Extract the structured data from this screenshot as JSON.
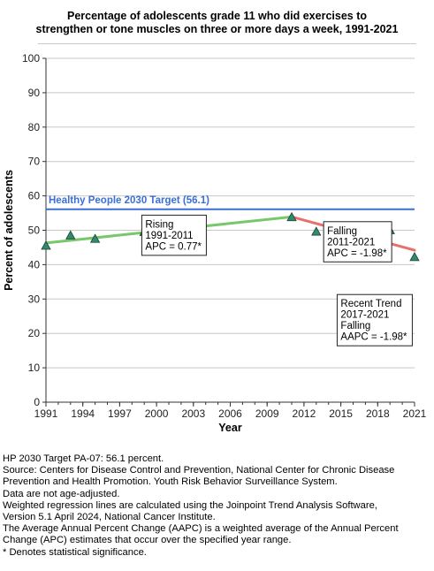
{
  "chart_data": {
    "type": "line",
    "title": [
      "Percentage of adolescents grade 11 who did exercises to",
      "strengthen or tone muscles on three or more days a week, 1991-2021"
    ],
    "xlabel": "Year",
    "ylabel": "Percent of adolescents",
    "xlim": [
      1991,
      2021
    ],
    "ylim": [
      0,
      100
    ],
    "x_ticks": [
      1991,
      1994,
      1997,
      2000,
      2003,
      2006,
      2009,
      2012,
      2015,
      2018,
      2021
    ],
    "y_ticks": [
      0,
      10,
      20,
      30,
      40,
      50,
      60,
      70,
      80,
      90,
      100
    ],
    "grid": "horizontal",
    "observed": {
      "marker": "triangle",
      "color": "#2e8b6e",
      "x": [
        1991,
        1993,
        1995,
        1999,
        2001,
        2003,
        2011,
        2013,
        2015,
        2017,
        2019,
        2021
      ],
      "y": [
        45.5,
        48.5,
        47.5,
        49.5,
        51.0,
        51.3,
        53.8,
        49.6,
        50.9,
        48.3,
        50.0,
        42.2
      ]
    },
    "target": {
      "label": "Healthy People 2030 Target (56.1)",
      "value": 56.1,
      "color": "#3b6fd4"
    },
    "trends": [
      {
        "x": [
          1991,
          2011
        ],
        "y": [
          46.3,
          53.9
        ],
        "color": "#77c86a"
      },
      {
        "x": [
          2011,
          2021
        ],
        "y": [
          53.9,
          44.2
        ],
        "color": "#e8706b"
      }
    ],
    "annotations": [
      {
        "lines": [
          "Rising",
          "1991-2011",
          "APC =  0.77*"
        ],
        "anchor": [
          1998.8,
          42.7
        ]
      },
      {
        "lines": [
          "Falling",
          "2011-2021",
          "APC = -1.98*"
        ],
        "anchor": [
          2013.6,
          40.8
        ]
      },
      {
        "lines": [
          "Recent Trend",
          "2017-2021",
          "Falling",
          "AAPC = -1.98*"
        ],
        "anchor": [
          2014.7,
          16.4
        ]
      }
    ]
  },
  "footnotes": [
    "HP 2030 Target PA-07: 56.1 percent.",
    "Source: Centers for Disease Control and Prevention, National Center for Chronic Disease",
    "Prevention and Health Promotion. Youth Risk Behavior Surveillance System.",
    "Data are not age-adjusted.",
    "Weighted regression lines are calculated using the Joinpoint Trend Analysis Software,",
    "Version 5.1 April 2024, National Cancer Institute.",
    "The Average Annual Percent Change (AAPC) is a weighted average of the Annual Percent",
    "Change (APC) estimates that occur over the specified year range.",
    "* Denotes statistical significance."
  ]
}
